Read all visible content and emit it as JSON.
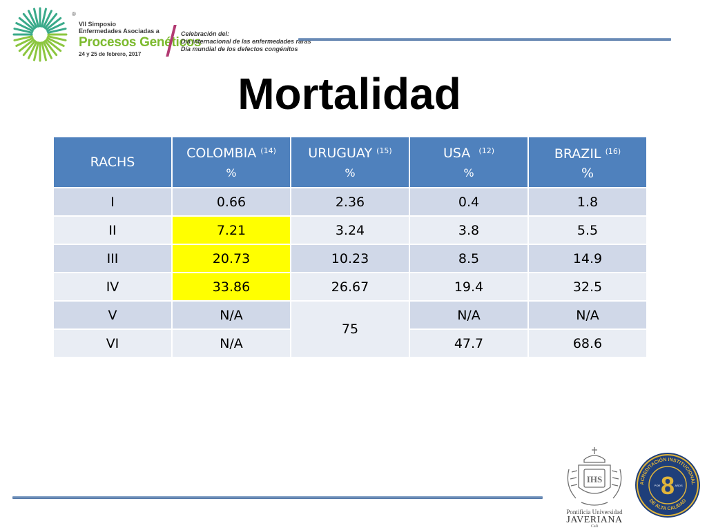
{
  "header": {
    "logo": {
      "registered_mark": "®",
      "line1": "VII Simposio",
      "line2": "Enfermedades Asociadas a",
      "line3": "Procesos Genéticos",
      "date": "24 y 25 de febrero, 2017",
      "celebration1": "Celebración del:",
      "celebration2": "Día internacional de las enfermedades raras",
      "celebration3": "Día mundial de los defectos congénitos"
    },
    "accent_color": "#4f81bd"
  },
  "title": "Mortalidad",
  "table": {
    "headers": [
      {
        "name": "RACHS",
        "ref": "",
        "unit": ""
      },
      {
        "name": "COLOMBIA",
        "ref": "(14)",
        "unit": "%"
      },
      {
        "name": "URUGUAY",
        "ref": "(15)",
        "unit": "%"
      },
      {
        "name": "USA",
        "ref": "(12)",
        "unit": "%"
      },
      {
        "name": "BRAZIL",
        "ref": "(16)",
        "unit": "%"
      }
    ],
    "rows": [
      [
        "I",
        "0.66",
        "2.36",
        "0.4",
        "1.8"
      ],
      [
        "II",
        "7.21",
        "3.24",
        "3.8",
        "5.5"
      ],
      [
        "III",
        "20.73",
        "10.23",
        "8.5",
        "14.9"
      ],
      [
        "IV",
        "33.86",
        "26.67",
        "19.4",
        "32.5"
      ],
      [
        "V",
        "N/A",
        "75",
        "N/A",
        "N/A"
      ],
      [
        "VI",
        "N/A",
        "",
        "47.7",
        "68.6"
      ]
    ],
    "merged_cell_note": "Uruguay value 75 spans rows V and VI",
    "highlighted_cells": [
      "COLOMBIA II",
      "COLOMBIA III",
      "COLOMBIA IV"
    ],
    "highlight_color": "#ffff00",
    "header_color": "#4f81bd",
    "row_colors": [
      "#d0d8e8",
      "#e9edf4"
    ]
  },
  "footer": {
    "university_line1": "Pontificia Universidad",
    "university_line2": "JAVERIANA",
    "university_line3": "Cali",
    "seal_text_top": "ACREDITACIÓN INSTITUCIONAL",
    "seal_text_bottom": "DE ALTA CALIDAD",
    "seal_number": "8",
    "seal_por": "POR",
    "seal_anos": "AÑOS",
    "crest_letters": "IHS"
  }
}
